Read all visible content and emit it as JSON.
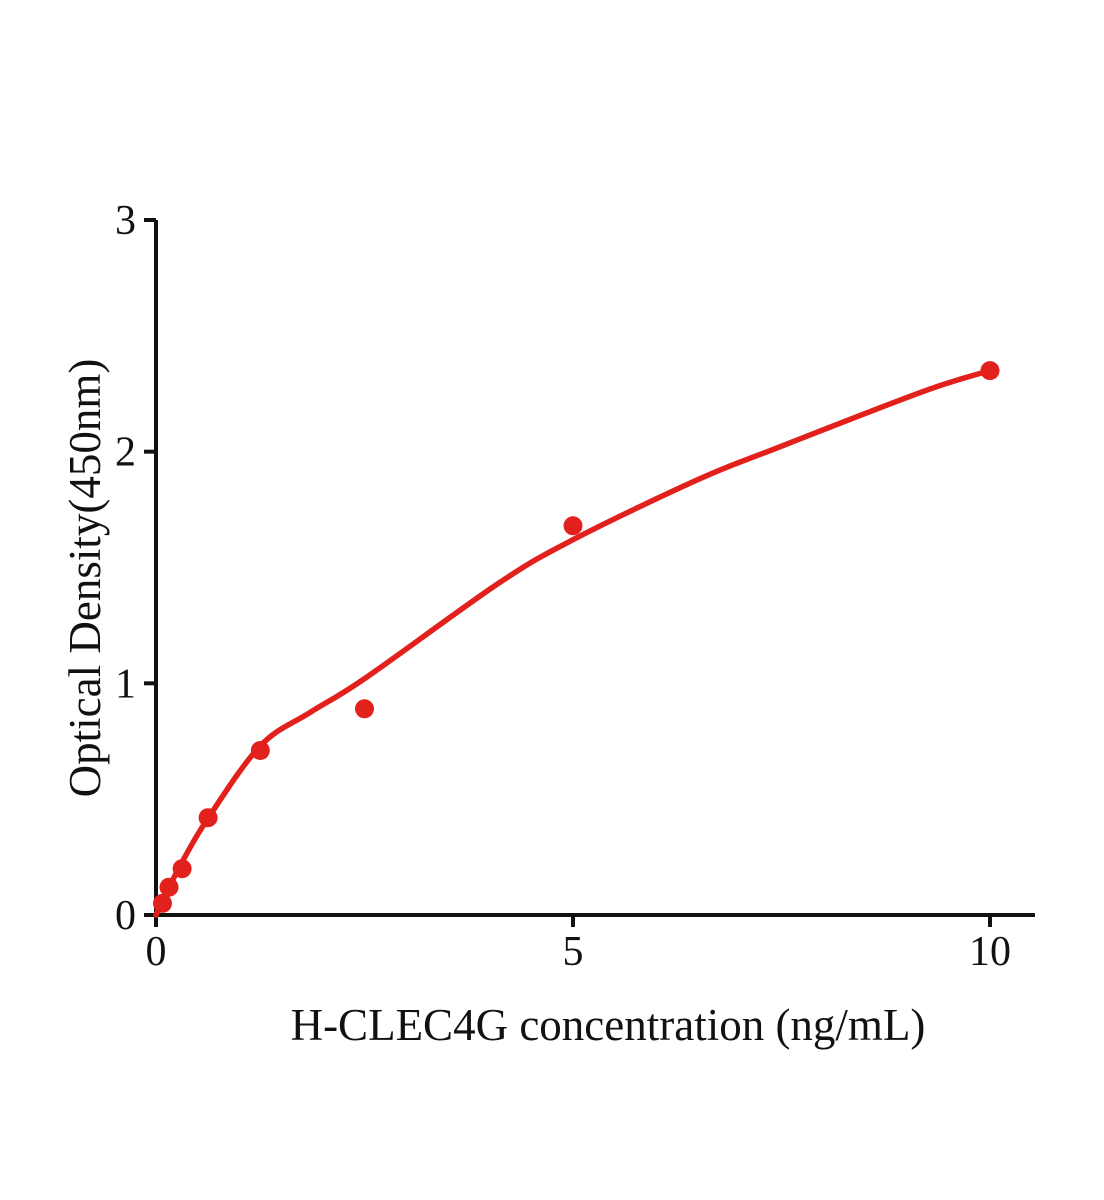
{
  "figure": {
    "background_color": "#ffffff",
    "accent_color": "#e2201c",
    "axis_color": "#111111"
  },
  "chart_data": {
    "type": "scatter",
    "title": "",
    "xlabel": "H-CLEC4G concentration (ng/mL)",
    "ylabel": "Optical Density(450nm)",
    "xlim": [
      0,
      10.55
    ],
    "ylim": [
      0,
      3
    ],
    "xticks": [
      "0",
      "5",
      "10"
    ],
    "xtick_values": [
      0,
      5,
      10
    ],
    "yticks": [
      "0",
      "1",
      "2",
      "3"
    ],
    "ytick_values": [
      0,
      1,
      2,
      3
    ],
    "grid": false,
    "legend_position": "none",
    "series": [
      {
        "name": "standard-points",
        "type": "scatter",
        "marker": "circle",
        "color": "#e2201c",
        "x": [
          0.078,
          0.156,
          0.3125,
          0.625,
          1.25,
          2.5,
          5,
          10
        ],
        "y": [
          0.05,
          0.12,
          0.2,
          0.42,
          0.71,
          0.89,
          1.68,
          2.35
        ]
      },
      {
        "name": "fitted-curve",
        "type": "line",
        "color": "#e2201c",
        "x": [
          0,
          0.16,
          0.3,
          0.61,
          1.25,
          1.85,
          2.5,
          4.1,
          5.0,
          6.5,
          7.4,
          9.2,
          10
        ],
        "y": [
          0,
          0.12,
          0.22,
          0.41,
          0.73,
          0.875,
          1.02,
          1.43,
          1.62,
          1.88,
          2.01,
          2.26,
          2.35
        ]
      }
    ]
  }
}
